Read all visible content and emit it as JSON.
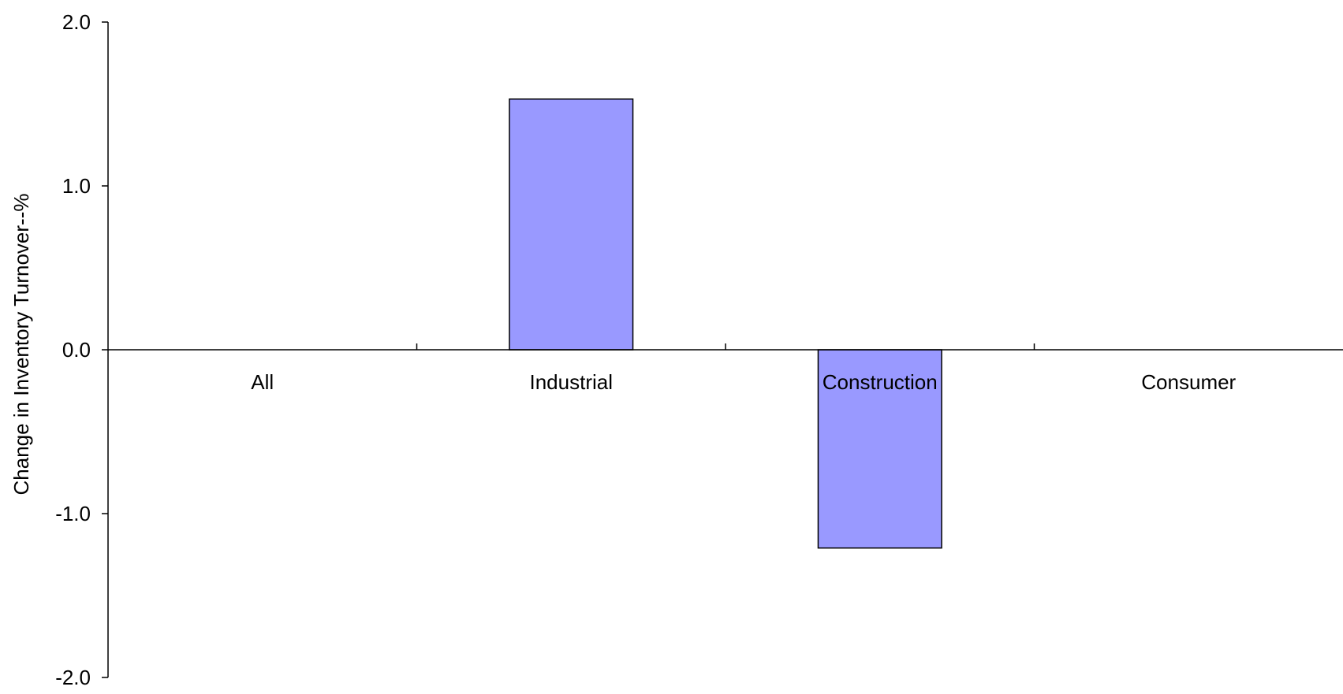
{
  "chart_data": {
    "type": "bar",
    "title": "",
    "xlabel": "",
    "ylabel": "Change in Inventory Turnover--%",
    "categories": [
      "All",
      "Industrial",
      "Construction",
      "Consumer"
    ],
    "series": [
      {
        "values": [
          0.0,
          1.53,
          -1.21,
          0.0
        ]
      }
    ],
    "ylim": [
      -2.0,
      2.0
    ],
    "yticks": [
      2.0,
      1.0,
      0.0,
      -1.0,
      -2.0
    ],
    "ytick_labels": [
      "2.0",
      "1.0",
      "0.0",
      "-1.0",
      "-2.0"
    ],
    "grid": false,
    "legend": "none",
    "bar_color": "#9999ff",
    "bar_edge_color": "#000000"
  }
}
